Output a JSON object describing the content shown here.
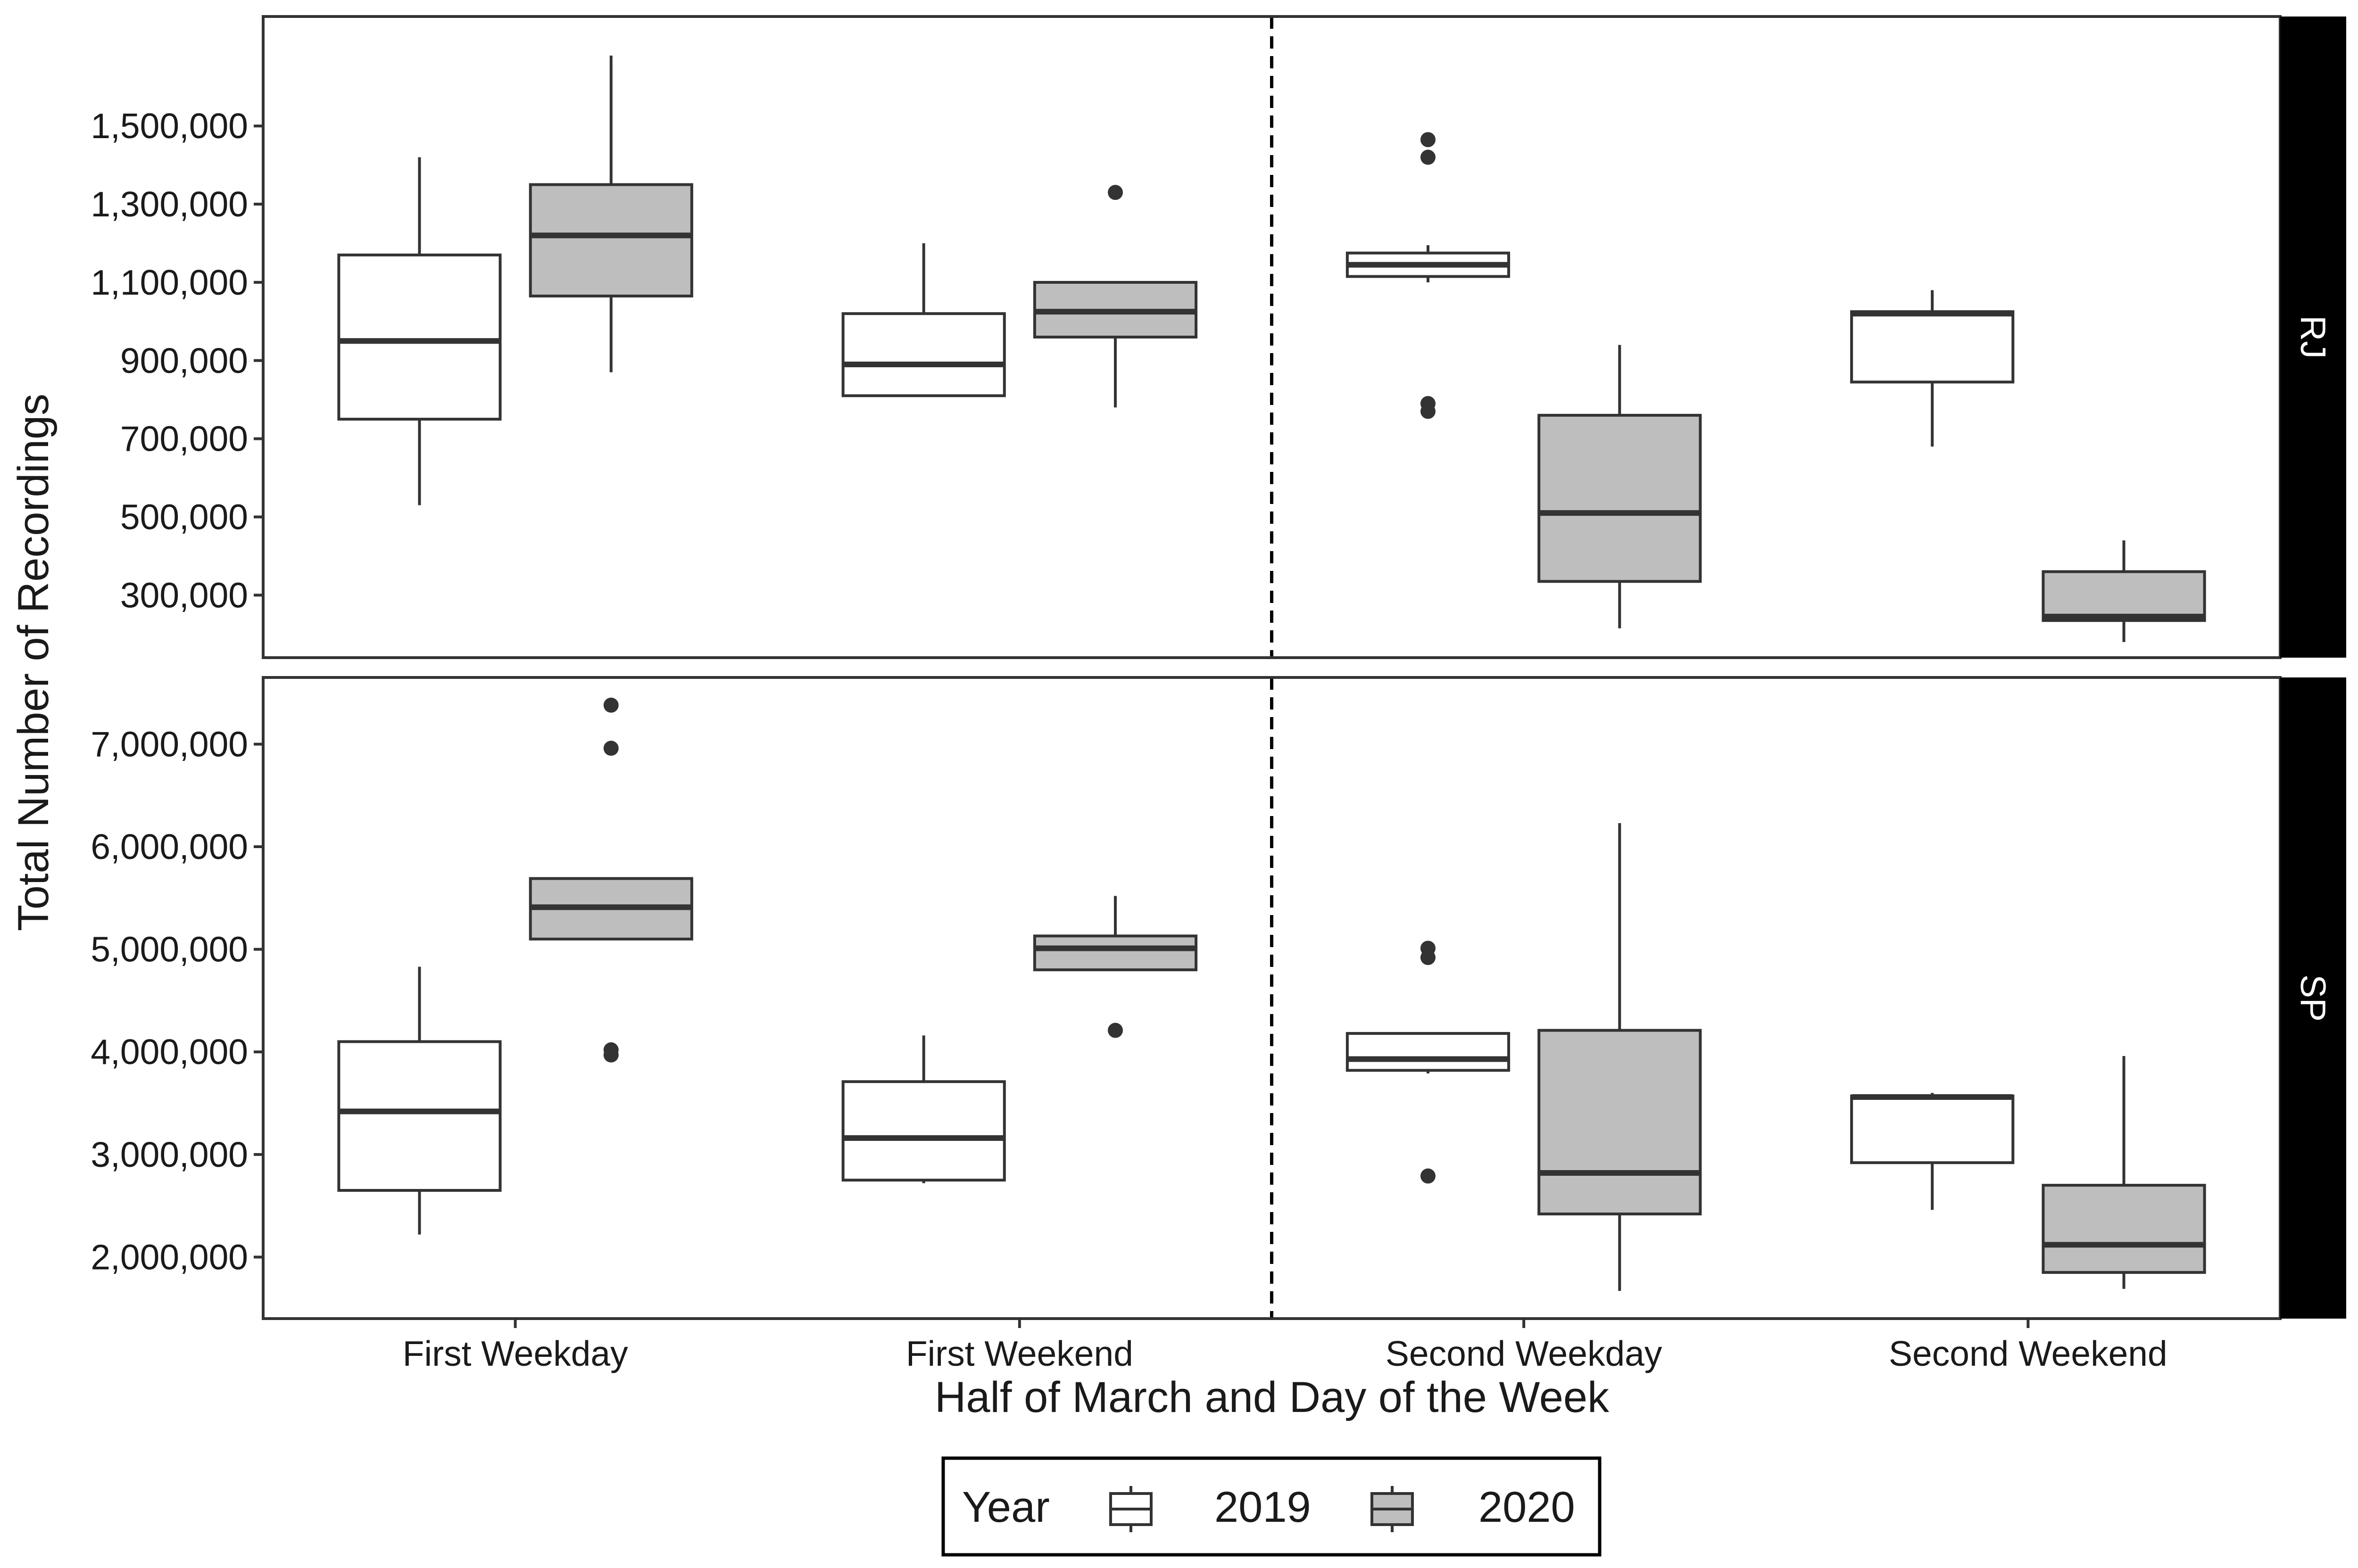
{
  "colors": {
    "box_2019": "#ffffff",
    "box_2020": "#bebebe",
    "stroke": "#333333",
    "strip_bg": "#000000",
    "strip_text": "#ffffff"
  },
  "chart_data": {
    "type": "boxplot",
    "xlabel": "Half of March and Day of the Week",
    "ylabel": "Total Number of Recordings",
    "categories": [
      "First Weekday",
      "First Weekend",
      "Second Weekday",
      "Second Weekend"
    ],
    "divider_after_category": 1,
    "divider_style": "dashed",
    "grid": false,
    "legend": {
      "title": "Year",
      "placement": "bottom",
      "entries": [
        "2019",
        "2020"
      ]
    },
    "facets": [
      {
        "label": "RJ",
        "ylim": [
          140000,
          1780000
        ],
        "yticks": [
          300000,
          500000,
          700000,
          900000,
          1100000,
          1300000,
          1500000
        ],
        "ytick_labels": [
          "300,000",
          "500,000",
          "700,000",
          "900,000",
          "1,100,000",
          "1,300,000",
          "1,500,000"
        ],
        "series": [
          {
            "name": "2019",
            "boxes": [
              {
                "category": "First Weekday",
                "low": 530000,
                "q1": 750000,
                "median": 950000,
                "q3": 1170000,
                "high": 1420000,
                "outliers": []
              },
              {
                "category": "First Weekend",
                "low": 810000,
                "q1": 810000,
                "median": 890000,
                "q3": 1020000,
                "high": 1200000,
                "outliers": []
              },
              {
                "category": "Second Weekday",
                "low": 1100000,
                "q1": 1115000,
                "median": 1145000,
                "q3": 1175000,
                "high": 1195000,
                "outliers": [
                  1465000,
                  1420000,
                  790000,
                  770000
                ]
              },
              {
                "category": "Second Weekend",
                "low": 680000,
                "q1": 845000,
                "median": 1020000,
                "q3": 1025000,
                "high": 1080000,
                "outliers": []
              }
            ]
          },
          {
            "name": "2020",
            "boxes": [
              {
                "category": "First Weekday",
                "low": 870000,
                "q1": 1065000,
                "median": 1220000,
                "q3": 1350000,
                "high": 1680000,
                "outliers": []
              },
              {
                "category": "First Weekend",
                "low": 780000,
                "q1": 960000,
                "median": 1025000,
                "q3": 1100000,
                "high": 1100000,
                "outliers": [
                  1330000
                ]
              },
              {
                "category": "Second Weekday",
                "low": 215000,
                "q1": 335000,
                "median": 510000,
                "q3": 760000,
                "high": 940000,
                "outliers": []
              },
              {
                "category": "Second Weekend",
                "low": 180000,
                "q1": 235000,
                "median": 245000,
                "q3": 360000,
                "high": 440000,
                "outliers": []
              }
            ]
          }
        ]
      },
      {
        "label": "SP",
        "ylim": [
          1400000,
          7650000
        ],
        "yticks": [
          2000000,
          3000000,
          4000000,
          5000000,
          6000000,
          7000000
        ],
        "ytick_labels": [
          "2,000,000",
          "3,000,000",
          "4,000,000",
          "5,000,000",
          "6,000,000",
          "7,000,000"
        ],
        "series": [
          {
            "name": "2019",
            "boxes": [
              {
                "category": "First Weekday",
                "low": 2220000,
                "q1": 2650000,
                "median": 3420000,
                "q3": 4100000,
                "high": 4830000,
                "outliers": []
              },
              {
                "category": "First Weekend",
                "low": 2720000,
                "q1": 2750000,
                "median": 3160000,
                "q3": 3710000,
                "high": 4160000,
                "outliers": []
              },
              {
                "category": "Second Weekday",
                "low": 3790000,
                "q1": 3820000,
                "median": 3930000,
                "q3": 4180000,
                "high": 4180000,
                "outliers": [
                  5010000,
                  4920000,
                  2790000
                ]
              },
              {
                "category": "Second Weekend",
                "low": 2460000,
                "q1": 2920000,
                "median": 3560000,
                "q3": 3570000,
                "high": 3600000,
                "outliers": []
              }
            ]
          },
          {
            "name": "2020",
            "boxes": [
              {
                "category": "First Weekday",
                "low": 5100000,
                "q1": 5100000,
                "median": 5410000,
                "q3": 5690000,
                "high": 5700000,
                "outliers": [
                  7380000,
                  6960000,
                  4020000,
                  3970000
                ]
              },
              {
                "category": "First Weekend",
                "low": 4800000,
                "q1": 4800000,
                "median": 5010000,
                "q3": 5130000,
                "high": 5520000,
                "outliers": [
                  4210000
                ]
              },
              {
                "category": "Second Weekday",
                "low": 1670000,
                "q1": 2420000,
                "median": 2820000,
                "q3": 4210000,
                "high": 6230000,
                "outliers": []
              },
              {
                "category": "Second Weekend",
                "low": 1690000,
                "q1": 1850000,
                "median": 2120000,
                "q3": 2700000,
                "high": 3960000,
                "outliers": []
              }
            ]
          }
        ]
      }
    ]
  }
}
